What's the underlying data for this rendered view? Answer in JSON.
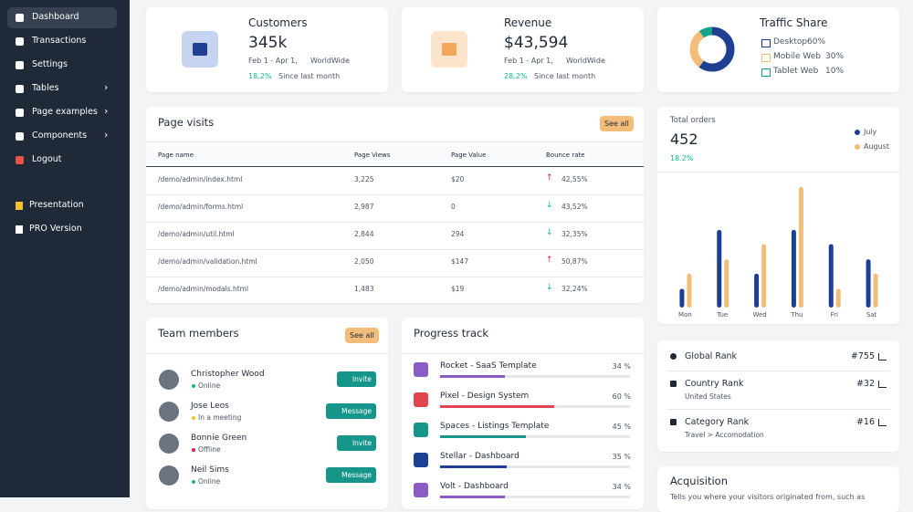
{
  "sidebar": {
    "items": [
      {
        "label": "Dashboard",
        "active": true,
        "submenu": false
      },
      {
        "label": "Transactions",
        "active": false,
        "submenu": false
      },
      {
        "label": "Settings",
        "active": false,
        "submenu": false
      },
      {
        "label": "Tables",
        "active": false,
        "submenu": true
      },
      {
        "label": "Page examples",
        "active": false,
        "submenu": true
      },
      {
        "label": "Components",
        "active": false,
        "submenu": true
      },
      {
        "label": "Logout",
        "active": false,
        "submenu": false
      }
    ],
    "extras": [
      {
        "label": "Presentation"
      },
      {
        "label": "PRO Version"
      }
    ]
  },
  "stats": [
    {
      "title": "Customers",
      "value": "345k",
      "period": "Feb 1 - Apr 1,",
      "region": "WorldWide",
      "change": "18.2%",
      "since": "Since last month",
      "icon_color": "#c6d4f1"
    },
    {
      "title": "Revenue",
      "value": "$43,594",
      "period": "Feb 1 - Apr 1,",
      "region": "WorldWide",
      "change": "28.2%",
      "since": "Since last month",
      "icon_color": "#fbe4cb"
    }
  ],
  "traffic": {
    "title": "Traffic Share",
    "items": [
      {
        "label": "Desktop",
        "share": 60,
        "share_label": "60%",
        "color": "#1f3f93"
      },
      {
        "label": "Mobile Web",
        "share": 30,
        "share_label": "30%",
        "color": "#f2bd7a"
      },
      {
        "label": "Tablet Web",
        "share": 10,
        "share_label": "10%",
        "color": "#18a38a"
      }
    ]
  },
  "page_visits": {
    "title": "Page visits",
    "button": "See all",
    "columns": [
      "Page name",
      "Page Views",
      "Page Value",
      "Bounce rate"
    ],
    "rows": [
      {
        "cells": [
          "/demo/admin/index.html",
          "3,225",
          "$20",
          "42,55%"
        ],
        "trend": "up"
      },
      {
        "cells": [
          "/demo/admin/forms.html",
          "2,987",
          "0",
          "43,52%"
        ],
        "trend": "down"
      },
      {
        "cells": [
          "/demo/admin/util.html",
          "2,844",
          "294",
          "32,35%"
        ],
        "trend": "down"
      },
      {
        "cells": [
          "/demo/admin/validation.html",
          "2,050",
          "$147",
          "50,87%"
        ],
        "trend": "up"
      },
      {
        "cells": [
          "/demo/admin/modals.html",
          "1,483",
          "$19",
          "32,24%"
        ],
        "trend": "down"
      }
    ]
  },
  "orders": {
    "title": "Total orders",
    "value": "452",
    "change": "18.2%",
    "chart_data": {
      "type": "bar",
      "categories": [
        "Mon",
        "Tue",
        "Wed",
        "Thu",
        "Fri",
        "Sat"
      ],
      "series": [
        {
          "name": "July",
          "color": "#1c3f96",
          "values": [
            21,
            87,
            38,
            87,
            71,
            54
          ]
        },
        {
          "name": "August",
          "color": "#f2bd7a",
          "values": [
            38,
            54,
            71,
            135,
            21,
            38
          ]
        }
      ],
      "ylim": [
        0,
        140
      ]
    }
  },
  "ranks": [
    {
      "label": "Global Rank",
      "sub": null,
      "value": "#755"
    },
    {
      "label": "Country Rank",
      "sub": "United States",
      "value": "#32"
    },
    {
      "label": "Category Rank",
      "sub": "Travel > Accomodation",
      "value": "#16"
    }
  ],
  "team": {
    "title": "Team members",
    "button": "See all",
    "members": [
      {
        "name": "Christopher Wood",
        "status": "Online",
        "status_color": "#10b981",
        "action": "Invite"
      },
      {
        "name": "Jose Leos",
        "status": "In a meeting",
        "status_color": "#f5c12e",
        "action": "Message"
      },
      {
        "name": "Bonnie Green",
        "status": "Offline",
        "status_color": "#e11d48",
        "action": "Invite"
      },
      {
        "name": "Neil Sims",
        "status": "Online",
        "status_color": "#10b981",
        "action": "Message"
      }
    ]
  },
  "progress": {
    "title": "Progress track",
    "items": [
      {
        "name": "Rocket - SaaS Template",
        "percent": 34,
        "percent_label": "34 %",
        "color": "#8b5cc6"
      },
      {
        "name": "Pixel - Design System",
        "percent": 60,
        "percent_label": "60 %",
        "color": "#e0464f"
      },
      {
        "name": "Spaces - Listings Template",
        "percent": 45,
        "percent_label": "45 %",
        "color": "#16958a"
      },
      {
        "name": "Stellar - Dashboard",
        "percent": 35,
        "percent_label": "35 %",
        "color": "#1c3f96"
      },
      {
        "name": "Volt - Dashboard",
        "percent": 34,
        "percent_label": "34 %",
        "color": "#8b5cc6"
      }
    ]
  },
  "acquisition": {
    "title": "Acquisition",
    "text": "Tells you where your visitors originated from, such as"
  }
}
